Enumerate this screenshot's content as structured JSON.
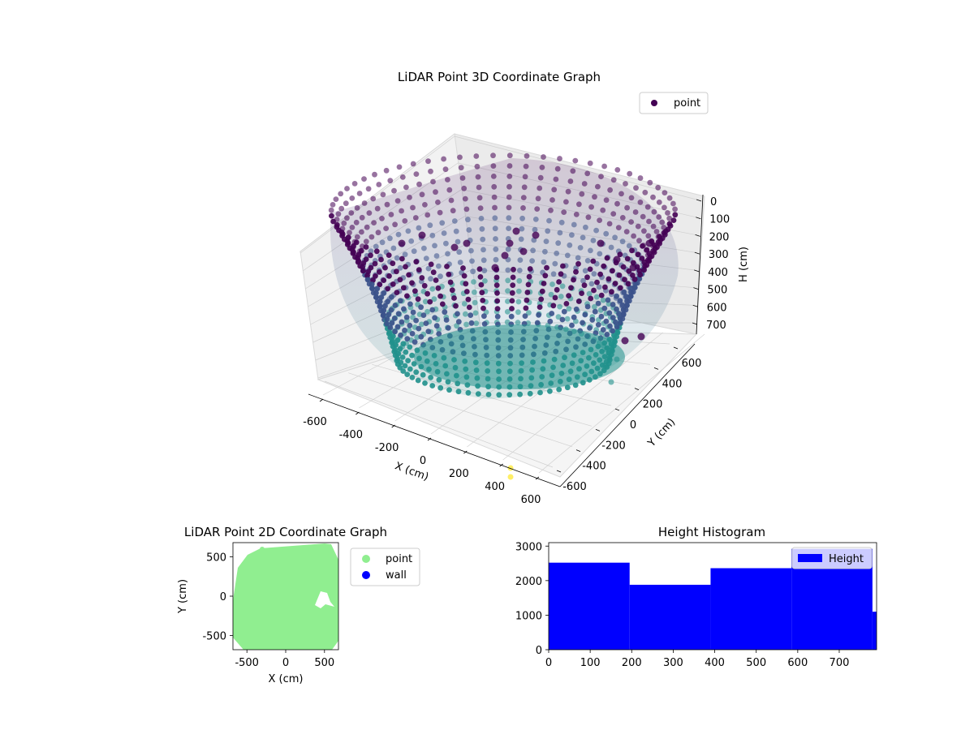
{
  "chart_data": [
    {
      "type": "scatter",
      "projection": "3d",
      "title": "LiDAR Point 3D Coordinate Graph",
      "xlabel": "X (cm)",
      "ylabel": "Y (cm)",
      "zlabel": "H (cm)",
      "xlim": [
        -650,
        650
      ],
      "ylim": [
        -650,
        650
      ],
      "zlim": [
        790,
        0
      ],
      "x_ticks": [
        -600,
        -400,
        -200,
        0,
        200,
        400,
        600
      ],
      "y_ticks": [
        -600,
        -400,
        -200,
        0,
        200,
        400,
        600
      ],
      "z_ticks": [
        0,
        100,
        200,
        300,
        400,
        500,
        600,
        700
      ],
      "z_axis_inverted": true,
      "grid": true,
      "colormap": [
        "#440154",
        "#3b528b",
        "#21918c",
        "#5ec962",
        "#fde725"
      ],
      "legend": {
        "position": "top-right",
        "entries": [
          {
            "label": "point",
            "color": "#440154"
          }
        ]
      },
      "series": [
        {
          "name": "point",
          "description_points": [
            {
              "x": 560,
              "y": -560,
              "h": 780
            },
            {
              "x": 570,
              "y": -590,
              "h": 790
            },
            {
              "x": 300,
              "y": 100,
              "h": 620
            }
          ]
        }
      ]
    },
    {
      "type": "scatter",
      "title": "LiDAR Point 2D Coordinate Graph",
      "xlabel": "X (cm)",
      "ylabel": "Y (cm)",
      "xlim": [
        -680,
        680
      ],
      "ylim": [
        -680,
        680
      ],
      "x_ticks": [
        -500,
        0,
        500
      ],
      "y_ticks": [
        -500,
        0,
        500
      ],
      "legend": {
        "position": "outside-right",
        "entries": [
          {
            "label": "point",
            "color": "#90ee90"
          },
          {
            "label": "wall",
            "color": "#0000ff"
          }
        ]
      }
    },
    {
      "type": "bar",
      "title": "Height Histogram",
      "xlim": [
        0,
        790
      ],
      "ylim": [
        0,
        3100
      ],
      "x_ticks": [
        0,
        100,
        200,
        300,
        400,
        500,
        600,
        700
      ],
      "y_ticks": [
        0,
        1000,
        2000,
        3000
      ],
      "bar_color": "#0000ff",
      "legend": {
        "position": "top-right",
        "entries": [
          {
            "label": "Height",
            "color": "#0000ff"
          }
        ]
      },
      "bins": [
        {
          "start": 0,
          "end": 195,
          "count": 2520
        },
        {
          "start": 195,
          "end": 390,
          "count": 1880
        },
        {
          "start": 390,
          "end": 585,
          "count": 2360
        },
        {
          "start": 585,
          "end": 780,
          "count": 2920
        },
        {
          "start": 780,
          "end": 790,
          "count": 1100
        }
      ]
    }
  ]
}
